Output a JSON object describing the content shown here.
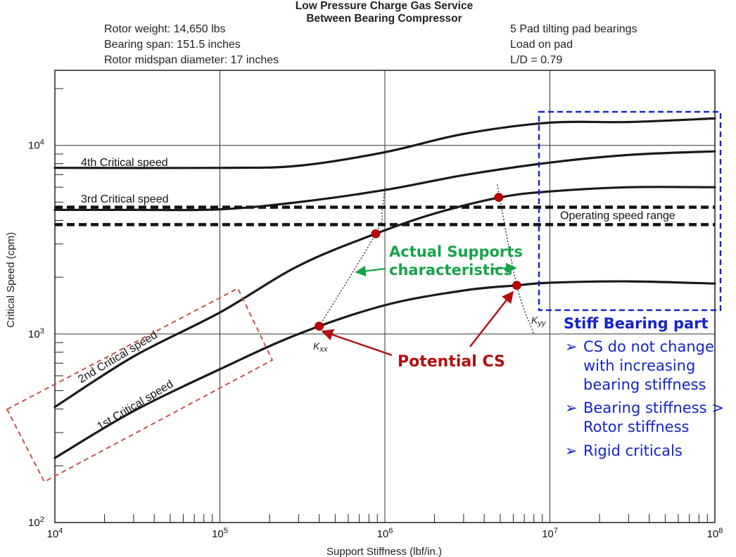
{
  "chart_data": {
    "type": "line",
    "title": "Low Pressure Charge Gas Service",
    "subtitle": "Between Bearing Compressor",
    "header_left": [
      "Rotor weight:  14,650 lbs",
      "Bearing span:  151.5 inches",
      "Rotor midspan diameter: 17 inches"
    ],
    "header_right": [
      "5 Pad tilting pad bearings",
      "Load on pad",
      "L/D = 0.79"
    ],
    "xlabel": "Support Stiffness (lbf/in.)",
    "ylabel": "Critical Speed (cpm)",
    "x_scale": "log",
    "y_scale": "log",
    "xlim": [
      10000,
      100000000
    ],
    "ylim": [
      100,
      25000
    ],
    "x_ticks": [
      10000,
      100000,
      1000000,
      10000000,
      100000000
    ],
    "x_tick_labels": [
      [
        "10",
        "4"
      ],
      [
        "10",
        "5"
      ],
      [
        "10",
        "6"
      ],
      [
        "10",
        "7"
      ],
      [
        "10",
        "8"
      ]
    ],
    "y_ticks": [
      100,
      1000,
      10000
    ],
    "y_tick_labels": [
      [
        "10",
        "2"
      ],
      [
        "10",
        "3"
      ],
      [
        "10",
        "4"
      ]
    ],
    "grid": true,
    "series": [
      {
        "name": "1st Critical speed",
        "points": [
          [
            10000,
            220
          ],
          [
            30000,
            390
          ],
          [
            100000,
            650
          ],
          [
            300000,
            1000
          ],
          [
            1000000,
            1420
          ],
          [
            3000000,
            1700
          ],
          [
            6300000,
            1810
          ],
          [
            10000000,
            1870
          ],
          [
            30000000,
            1900
          ],
          [
            100000000,
            1850
          ]
        ]
      },
      {
        "name": "2nd Critical speed",
        "points": [
          [
            10000,
            410
          ],
          [
            30000,
            760
          ],
          [
            100000,
            1300
          ],
          [
            300000,
            2300
          ],
          [
            880000,
            3400
          ],
          [
            2000000,
            4350
          ],
          [
            5000000,
            5300
          ],
          [
            10000000,
            5700
          ],
          [
            30000000,
            6000
          ],
          [
            100000000,
            6000
          ]
        ]
      },
      {
        "name": "3rd Critical speed",
        "points": [
          [
            10000,
            4550
          ],
          [
            30000,
            4550
          ],
          [
            100000,
            4580
          ],
          [
            300000,
            5000
          ],
          [
            1000000,
            5800
          ],
          [
            3000000,
            6950
          ],
          [
            10000000,
            8100
          ],
          [
            30000000,
            8900
          ],
          [
            100000000,
            9300
          ]
        ]
      },
      {
        "name": "4th Critical speed",
        "points": [
          [
            10000,
            7600
          ],
          [
            100000,
            7600
          ],
          [
            300000,
            7800
          ],
          [
            1000000,
            9200
          ],
          [
            3000000,
            11500
          ],
          [
            10000000,
            13200
          ],
          [
            30000000,
            13300
          ],
          [
            100000000,
            13900
          ]
        ]
      }
    ],
    "operating_speed_range": {
      "label": "Operating speed range",
      "min": 3800,
      "max": 4700
    },
    "support_lines": [
      {
        "name": "Kxx",
        "label": "K",
        "subscript": "xx",
        "points": [
          [
            400000,
            1100
          ],
          [
            880000,
            3400
          ],
          [
            960000,
            4500
          ],
          [
            1000000,
            6000
          ]
        ]
      },
      {
        "name": "Kyy",
        "label": "K",
        "subscript": "yy",
        "points": [
          [
            4800000,
            6200
          ],
          [
            6300000,
            1810
          ],
          [
            8000000,
            1000
          ]
        ]
      }
    ],
    "potential_cs_points": [
      [
        400000,
        1100
      ],
      [
        880000,
        3400
      ],
      [
        4900000,
        5300
      ],
      [
        6300000,
        1810
      ]
    ]
  },
  "annotations": {
    "actual_supports": [
      "Actual Supports",
      "characteristics"
    ],
    "potential_cs": "Potential CS",
    "stiff_title": "Stiff Bearing part",
    "stiff_bullets": [
      [
        "CS do not change",
        "with increasing",
        "bearing stiffness"
      ],
      [
        "Bearing stiffness >",
        "Rotor stiffness"
      ],
      [
        "Rigid criticals"
      ]
    ],
    "bullet_char": "➢",
    "colors": {
      "green": "#17a34a",
      "red": "#b01010",
      "blue": "#1524c8",
      "box_red": "#c0584a"
    }
  }
}
